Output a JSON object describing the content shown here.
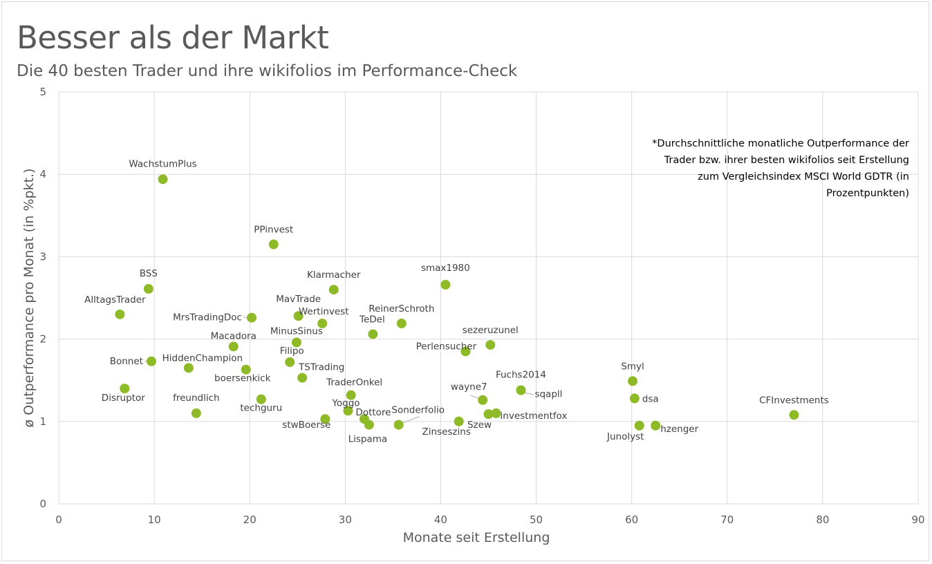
{
  "title": "Besser als der Markt",
  "subtitle": "Die 40 besten Trader und ihre wikifolios im Performance-Check",
  "chart_data": {
    "type": "scatter",
    "xlabel": "Monate seit Erstellung",
    "ylabel": "ø Outperformance pro Monat (in %pkt.)",
    "xlim": [
      0,
      90
    ],
    "ylim": [
      0,
      5
    ],
    "x_ticks": [
      "0",
      "10",
      "20",
      "30",
      "40",
      "50",
      "60",
      "70",
      "80",
      "90"
    ],
    "y_ticks": [
      "0",
      "1",
      "2",
      "3",
      "4",
      "5"
    ],
    "grid": true,
    "marker_color": "#8dba26",
    "annotation": [
      "*Durchschnittliche monatliche Outperformance der",
      "Trader bzw. ihrer besten wikifolios seit Erstellung",
      "zum Vergleichsindex MSCI World GDTR (in",
      "Prozentpunkten)"
    ],
    "points": [
      {
        "label": "WachstumPlus",
        "x": 10.9,
        "y": 3.94
      },
      {
        "label": "PPinvest",
        "x": 22.5,
        "y": 3.15
      },
      {
        "label": "BSS",
        "x": 9.4,
        "y": 2.61
      },
      {
        "label": "AlltagsTrader",
        "x": 6.4,
        "y": 2.3
      },
      {
        "label": "Klarmacher",
        "x": 28.8,
        "y": 2.6
      },
      {
        "label": "smax1980",
        "x": 40.5,
        "y": 2.66
      },
      {
        "label": "MrsTradingDoc",
        "x": 20.2,
        "y": 2.26
      },
      {
        "label": "MavTrade",
        "x": 25.1,
        "y": 2.28
      },
      {
        "label": "Wertinvest",
        "x": 27.6,
        "y": 2.19
      },
      {
        "label": "ReinerSchroth",
        "x": 35.9,
        "y": 2.19
      },
      {
        "label": "TeDel",
        "x": 32.9,
        "y": 2.06
      },
      {
        "label": "MinusSinus",
        "x": 24.9,
        "y": 1.96
      },
      {
        "label": "Macadora",
        "x": 18.3,
        "y": 1.91
      },
      {
        "label": "sezeruzunel",
        "x": 45.2,
        "y": 1.93
      },
      {
        "label": "Perlensucher",
        "x": 42.6,
        "y": 1.85
      },
      {
        "label": "Bonnet",
        "x": 9.7,
        "y": 1.73
      },
      {
        "label": "HiddenChampion",
        "x": 13.6,
        "y": 1.65
      },
      {
        "label": "Filipo",
        "x": 24.2,
        "y": 1.72
      },
      {
        "label": "boersenkick",
        "x": 19.6,
        "y": 1.63
      },
      {
        "label": "TSTrading",
        "x": 25.5,
        "y": 1.53
      },
      {
        "label": "Smyl",
        "x": 60.1,
        "y": 1.49
      },
      {
        "label": "Disruptor",
        "x": 6.9,
        "y": 1.4
      },
      {
        "label": "Fuchs2014",
        "x": 48.4,
        "y": 1.38
      },
      {
        "label": "sqapll",
        "x": 48.4,
        "y": 1.38
      },
      {
        "label": "TraderOnkel",
        "x": 30.6,
        "y": 1.32
      },
      {
        "label": "wayne7",
        "x": 44.4,
        "y": 1.26
      },
      {
        "label": "dsa",
        "x": 60.3,
        "y": 1.28
      },
      {
        "label": "techguru",
        "x": 21.2,
        "y": 1.27
      },
      {
        "label": "CFInvestments",
        "x": 77.0,
        "y": 1.08
      },
      {
        "label": "freundlich",
        "x": 14.4,
        "y": 1.1
      },
      {
        "label": "Yoggo",
        "x": 30.3,
        "y": 1.13
      },
      {
        "label": "Dottore",
        "x": 32.0,
        "y": 1.03
      },
      {
        "label": "Szew",
        "x": 45.0,
        "y": 1.09
      },
      {
        "label": "investmentfox",
        "x": 45.8,
        "y": 1.1
      },
      {
        "label": "stwBoerse",
        "x": 27.9,
        "y": 1.03
      },
      {
        "label": "Lispama",
        "x": 32.5,
        "y": 0.96
      },
      {
        "label": "Sonderfolio",
        "x": 35.6,
        "y": 0.96
      },
      {
        "label": "Zinseszins",
        "x": 41.9,
        "y": 1.0
      },
      {
        "label": "Junolyst",
        "x": 60.8,
        "y": 0.95
      },
      {
        "label": "hzenger",
        "x": 62.5,
        "y": 0.95
      }
    ]
  }
}
